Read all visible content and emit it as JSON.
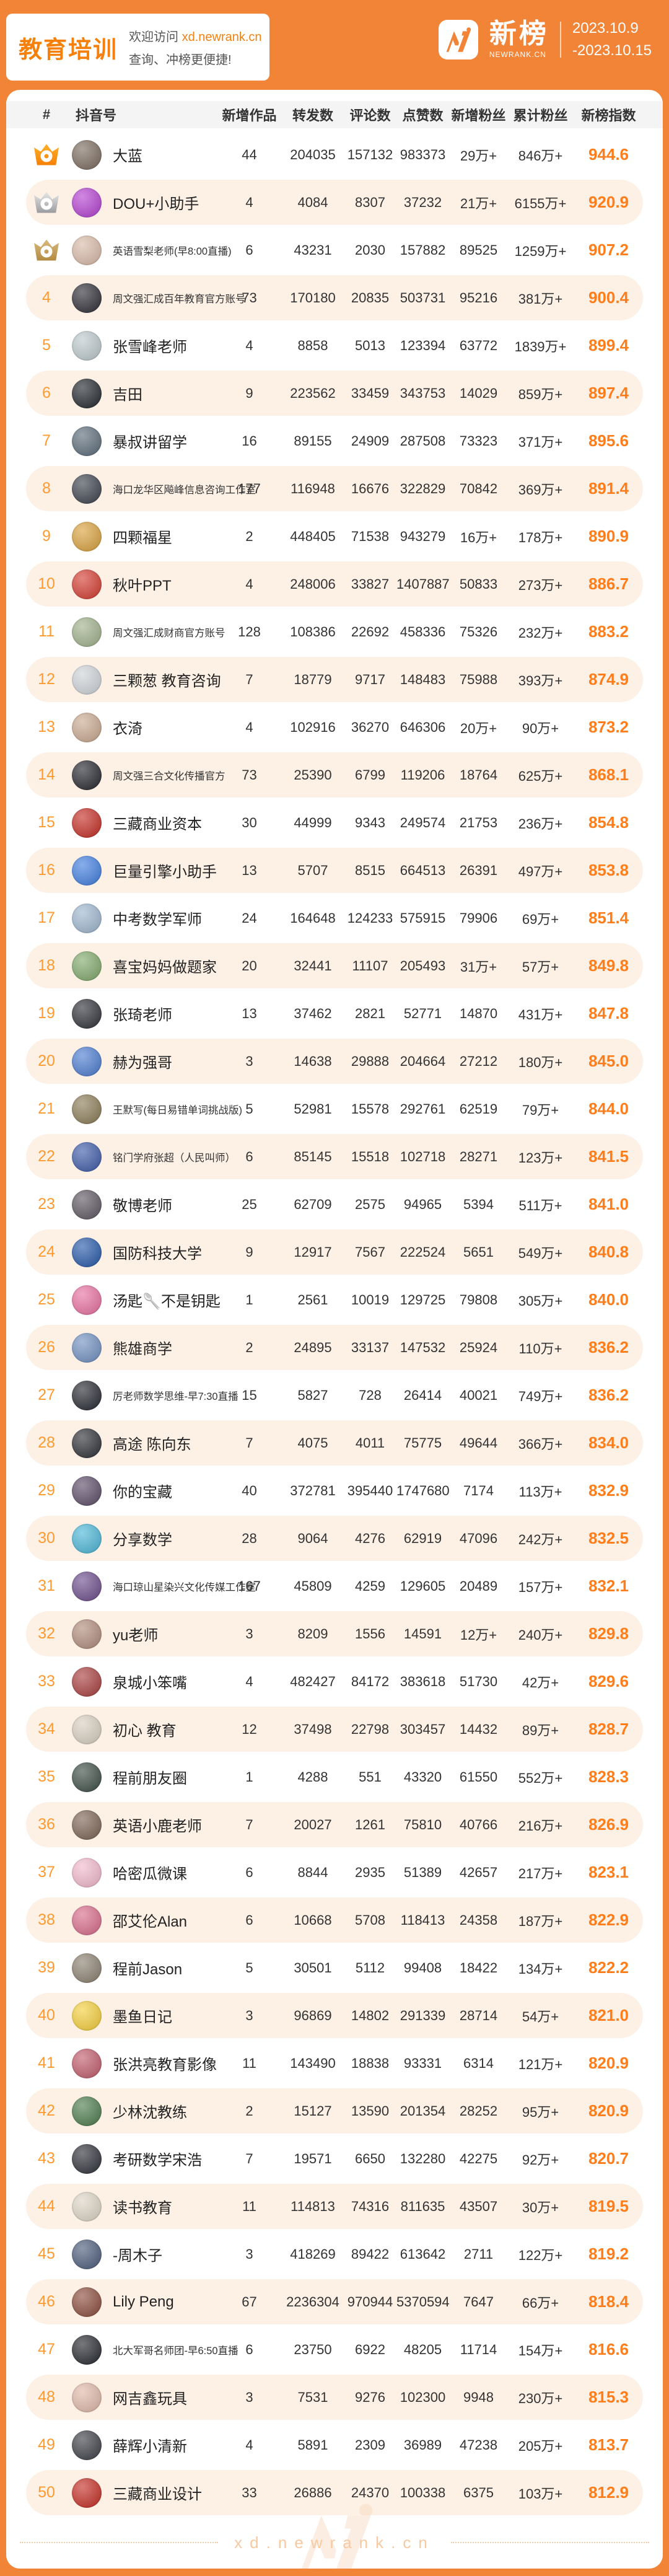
{
  "banner": {
    "category": "教育培训",
    "welcome_prefix": "欢迎访问",
    "welcome_link": "xd.newrank.cn",
    "welcome_line2": "查询、冲榜更便捷!",
    "brand_name": "新榜",
    "brand_domain": "NEWRANK.CN",
    "date_start": "2023.10.9",
    "date_end": "-2023.10.15"
  },
  "table": {
    "columns": [
      "#",
      "抖音号",
      "新增作品",
      "转发数",
      "评论数",
      "点赞数",
      "新增粉丝",
      "累计粉丝",
      "新榜指数"
    ],
    "row_fields": [
      "rank",
      "name",
      "new_works",
      "shares",
      "comments",
      "likes",
      "new_fans",
      "total_fans",
      "index",
      "avatar_color"
    ],
    "rows": [
      [
        1,
        "大蓝",
        "44",
        "204035",
        "157132",
        "983373",
        "29万+",
        "846万+",
        "944.6",
        "#7a6a5d"
      ],
      [
        2,
        "DOU+小助手",
        "4",
        "4084",
        "8307",
        "37232",
        "21万+",
        "6155万+",
        "920.9",
        "#b43fd1"
      ],
      [
        3,
        "英语雪梨老师(早8:00直播)",
        "6",
        "43231",
        "2030",
        "157882",
        "89525",
        "1259万+",
        "907.2",
        "#d9b9a8"
      ],
      [
        4,
        "周文强汇成百年教育官方账号",
        "73",
        "170180",
        "20835",
        "503731",
        "95216",
        "381万+",
        "900.4",
        "#2b2b33"
      ],
      [
        5,
        "张雪峰老师",
        "4",
        "8858",
        "5013",
        "123394",
        "63772",
        "1839万+",
        "899.4",
        "#bcc8cc"
      ],
      [
        6,
        "吉田",
        "9",
        "223562",
        "33459",
        "343753",
        "14029",
        "859万+",
        "897.4",
        "#20242a"
      ],
      [
        7,
        "暴叔讲留学",
        "16",
        "89155",
        "24909",
        "287508",
        "73323",
        "371万+",
        "895.6",
        "#5a6a78"
      ],
      [
        8,
        "海口龙华区飚峰信息咨询工作室",
        "177",
        "116948",
        "16676",
        "322829",
        "70842",
        "369万+",
        "891.4",
        "#3a3f4a"
      ],
      [
        9,
        "四颗福星",
        "2",
        "448405",
        "71538",
        "943279",
        "16万+",
        "178万+",
        "890.9",
        "#d9a13c"
      ],
      [
        10,
        "秋叶PPT",
        "4",
        "248006",
        "33827",
        "1407887",
        "50833",
        "273万+",
        "886.7",
        "#d33a2f"
      ],
      [
        11,
        "周文强汇成财商官方账号",
        "128",
        "108386",
        "22692",
        "458336",
        "75326",
        "232万+",
        "883.2",
        "#9fb08a"
      ],
      [
        12,
        "三颗葱 教育咨询",
        "7",
        "18779",
        "9717",
        "148483",
        "75988",
        "393万+",
        "874.9",
        "#cfd3d8"
      ],
      [
        13,
        "衣渏",
        "4",
        "102916",
        "36270",
        "646306",
        "20万+",
        "90万+",
        "873.2",
        "#c9a88f"
      ],
      [
        14,
        "周文强三合文化传播官方",
        "73",
        "25390",
        "6799",
        "119206",
        "18764",
        "625万+",
        "868.1",
        "#23242c"
      ],
      [
        15,
        "三藏商业资本",
        "30",
        "44999",
        "9343",
        "249574",
        "21753",
        "236万+",
        "854.8",
        "#c42b22"
      ],
      [
        16,
        "巨量引擎小助手",
        "13",
        "5707",
        "8515",
        "664513",
        "26391",
        "497万+",
        "853.8",
        "#3f7de0"
      ],
      [
        17,
        "中考数学军师",
        "24",
        "164648",
        "124233",
        "575915",
        "79906",
        "69万+",
        "851.4",
        "#9db6cf"
      ],
      [
        18,
        "喜宝妈妈做题家",
        "20",
        "32441",
        "11107",
        "205493",
        "31万+",
        "57万+",
        "849.8",
        "#7fa86a"
      ],
      [
        19,
        "张琦老师",
        "13",
        "37462",
        "2821",
        "52771",
        "14870",
        "431万+",
        "847.8",
        "#2c2f36"
      ],
      [
        20,
        "赫为强哥",
        "3",
        "14638",
        "29888",
        "204664",
        "27212",
        "180万+",
        "845.0",
        "#4a7bd0"
      ],
      [
        21,
        "王默写(每日易错单词挑战版)",
        "5",
        "52981",
        "15578",
        "292761",
        "62519",
        "79万+",
        "844.0",
        "#8a7a55"
      ],
      [
        22,
        "铭门学府张超（人民叫师）",
        "6",
        "85145",
        "15518",
        "102718",
        "28271",
        "123万+",
        "841.5",
        "#3c59a8"
      ],
      [
        23,
        "敬博老师",
        "25",
        "62709",
        "2575",
        "94965",
        "5394",
        "511万+",
        "841.0",
        "#5c5560"
      ],
      [
        24,
        "国防科技大学",
        "9",
        "12917",
        "7567",
        "222524",
        "5651",
        "549万+",
        "840.8",
        "#2457a8"
      ],
      [
        25,
        "汤匙🥄不是钥匙",
        "1",
        "2561",
        "10019",
        "129725",
        "79808",
        "305万+",
        "840.0",
        "#e86fa0"
      ],
      [
        26,
        "熊雄商学",
        "2",
        "24895",
        "33137",
        "147532",
        "25924",
        "110万+",
        "836.2",
        "#6f8fc0"
      ],
      [
        27,
        "厉老师数学思维-早7:30直播",
        "15",
        "5827",
        "728",
        "26414",
        "40021",
        "749万+",
        "836.2",
        "#23262e"
      ],
      [
        28,
        "高途 陈向东",
        "7",
        "4075",
        "4011",
        "75775",
        "49644",
        "366万+",
        "834.0",
        "#2a2d33"
      ],
      [
        29,
        "你的宝藏",
        "40",
        "372781",
        "395440",
        "1747680",
        "7174",
        "113万+",
        "832.9",
        "#5a4a66"
      ],
      [
        30,
        "分享数学",
        "28",
        "9064",
        "4276",
        "62919",
        "47096",
        "242万+",
        "832.5",
        "#49b6d6"
      ],
      [
        31,
        "海口琼山星染兴文化传媒工作室",
        "167",
        "45809",
        "4259",
        "129605",
        "20489",
        "157万+",
        "832.1",
        "#6a4a8a"
      ],
      [
        32,
        "yu老师",
        "3",
        "8209",
        "1556",
        "14591",
        "12万+",
        "240万+",
        "829.8",
        "#b08a7a"
      ],
      [
        33,
        "泉城小笨嘴",
        "4",
        "482427",
        "84172",
        "383618",
        "51730",
        "42万+",
        "829.6",
        "#a83c3c"
      ],
      [
        34,
        "初心 教育",
        "12",
        "37498",
        "22798",
        "303457",
        "14432",
        "89万+",
        "828.7",
        "#d8cfc0"
      ],
      [
        35,
        "程前朋友圈",
        "1",
        "4288",
        "551",
        "43320",
        "61550",
        "552万+",
        "828.3",
        "#3a4a42"
      ],
      [
        36,
        "英语小鹿老师",
        "7",
        "20027",
        "1261",
        "75810",
        "40766",
        "216万+",
        "826.9",
        "#7a6252"
      ],
      [
        37,
        "哈密瓜微课",
        "6",
        "8844",
        "2935",
        "51389",
        "42657",
        "217万+",
        "823.1",
        "#f2b8cc"
      ],
      [
        38,
        "邵艾伦Alan",
        "6",
        "10668",
        "5708",
        "118413",
        "24358",
        "187万+",
        "822.9",
        "#d86a8a"
      ],
      [
        39,
        "程前Jason",
        "5",
        "30501",
        "5112",
        "99408",
        "18422",
        "134万+",
        "822.2",
        "#8a7f6f"
      ],
      [
        40,
        "墨鱼日记",
        "3",
        "96869",
        "14802",
        "291339",
        "28714",
        "54万+",
        "821.0",
        "#f5cf3a"
      ],
      [
        41,
        "张洪亮教育影像",
        "11",
        "143490",
        "18838",
        "93331",
        "6314",
        "121万+",
        "820.9",
        "#c05a6a"
      ],
      [
        42,
        "少林沈教练",
        "2",
        "15127",
        "13590",
        "201354",
        "28252",
        "95万+",
        "820.9",
        "#4a7a4a"
      ],
      [
        43,
        "考研数学宋浩",
        "7",
        "19571",
        "6650",
        "132280",
        "42275",
        "92万+",
        "820.7",
        "#2b2e36"
      ],
      [
        44,
        "读书教育",
        "11",
        "114813",
        "74316",
        "811635",
        "43507",
        "30万+",
        "819.5",
        "#ddd5c5"
      ],
      [
        45,
        "-周木子",
        "3",
        "418269",
        "89422",
        "613642",
        "2711",
        "122万+",
        "819.2",
        "#4a5a7a"
      ],
      [
        46,
        "Lily Peng",
        "67",
        "2236304",
        "970944",
        "5370594",
        "7647",
        "66万+",
        "818.4",
        "#8a4a3a"
      ],
      [
        47,
        "北大军哥名师团-早6:50直播",
        "6",
        "23750",
        "6922",
        "48205",
        "11714",
        "154万+",
        "816.6",
        "#23262c"
      ],
      [
        48,
        "网吉鑫玩具",
        "3",
        "7531",
        "9276",
        "102300",
        "9948",
        "230万+",
        "815.3",
        "#e0b8a8"
      ],
      [
        49,
        "薛辉小清新",
        "4",
        "5891",
        "2309",
        "36989",
        "47238",
        "205万+",
        "813.7",
        "#3a3d44"
      ],
      [
        50,
        "三藏商业设计",
        "33",
        "26886",
        "24370",
        "100338",
        "6375",
        "103万+",
        "812.9",
        "#c42b22"
      ]
    ],
    "medals": [
      "gold",
      "silver",
      "bronze"
    ]
  },
  "footer": {
    "watermark": "xd.newrank.cn"
  },
  "colors": {
    "frame_orange": "#f28438",
    "accent_orange": "#f5810c",
    "index_orange": "#ff7d1a",
    "rank_orange": "#ff9a2e",
    "alt_row_bg": "#fdf0e5",
    "header_strip_bg": "#f4f4f4"
  }
}
